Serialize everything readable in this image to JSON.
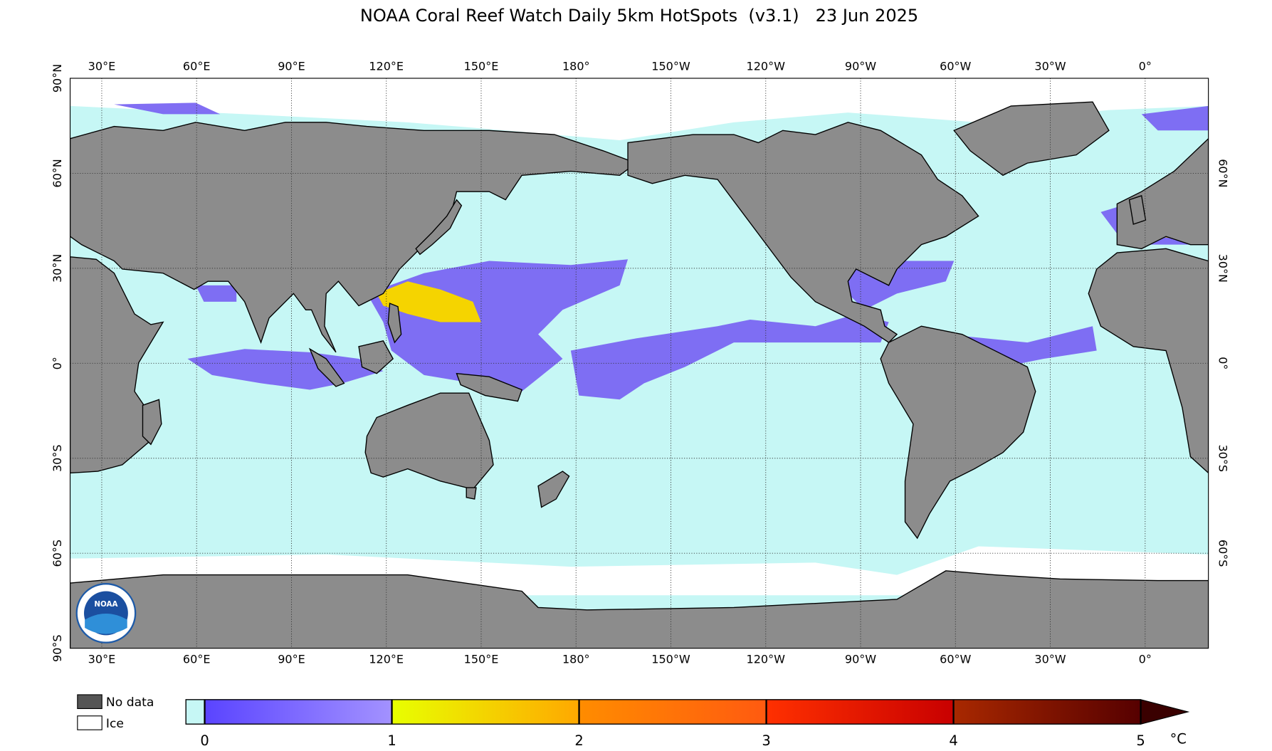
{
  "title": "NOAA Coral Reef Watch Daily 5km HotSpots  (v3.1)   23 Jun 2025",
  "map": {
    "lon_ticks": [
      {
        "value": 30,
        "label": "30°E"
      },
      {
        "value": 60,
        "label": "60°E"
      },
      {
        "value": 90,
        "label": "90°E"
      },
      {
        "value": 120,
        "label": "120°E"
      },
      {
        "value": 150,
        "label": "150°E"
      },
      {
        "value": 180,
        "label": "180°"
      },
      {
        "value": -150,
        "label": "150°W"
      },
      {
        "value": -120,
        "label": "120°W"
      },
      {
        "value": -90,
        "label": "90°W"
      },
      {
        "value": -60,
        "label": "60°W"
      },
      {
        "value": -30,
        "label": "30°W"
      },
      {
        "value": 0,
        "label": "0°"
      }
    ],
    "lat_ticks": [
      {
        "value": 90,
        "label": "90°N"
      },
      {
        "value": 60,
        "label": "60°N"
      },
      {
        "value": 30,
        "label": "30°N"
      },
      {
        "value": 0,
        "label": "0°"
      },
      {
        "value": -30,
        "label": "30°S"
      },
      {
        "value": -60,
        "label": "60°S"
      },
      {
        "value": -90,
        "label": "90°S"
      }
    ]
  },
  "legend": {
    "no_data": "No data",
    "ice": "Ice"
  },
  "colorbar": {
    "ticks": [
      0,
      1,
      2,
      3,
      4,
      5
    ],
    "unit": "°C"
  },
  "logo": {
    "label": "NOAA"
  }
}
